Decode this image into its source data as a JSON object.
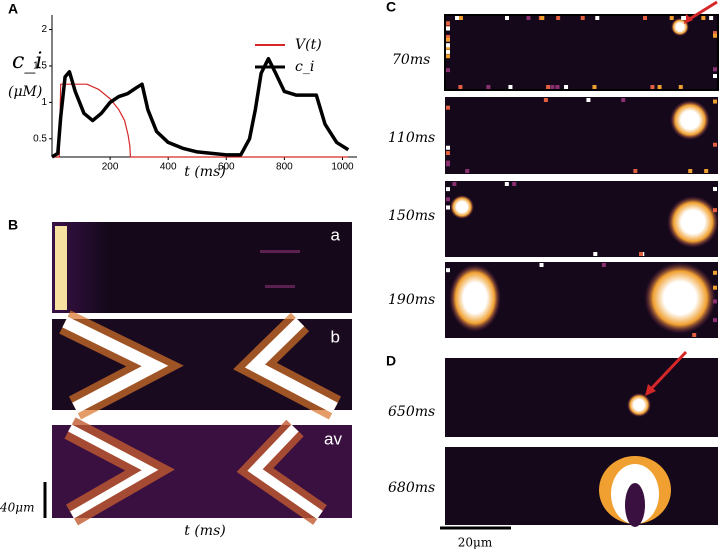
{
  "chart_data": {
    "type": "line",
    "panel": "A",
    "xlabel": "t  (ms)",
    "ylabel": "c_i",
    "ylabel_unit": "(μM)",
    "xlim": [
      0,
      1050
    ],
    "ylim": [
      0.25,
      2.2
    ],
    "xticks": [
      200,
      400,
      600,
      800,
      1000
    ],
    "yticks": [
      0.5,
      1,
      1.5,
      2
    ],
    "legend": "upper right",
    "series": [
      {
        "name": "V(t)",
        "color": "#d62728",
        "x": [
          0,
          25,
          30,
          120,
          160,
          200,
          230,
          250,
          262,
          268,
          270,
          1020
        ],
        "values": [
          0.25,
          0.25,
          1.25,
          1.25,
          1.18,
          1.05,
          0.9,
          0.75,
          0.55,
          0.4,
          0.25,
          0.25
        ]
      },
      {
        "name": "c_i",
        "color": "#000000",
        "x": [
          0,
          20,
          30,
          45,
          60,
          80,
          110,
          140,
          170,
          200,
          230,
          260,
          290,
          310,
          330,
          360,
          400,
          450,
          500,
          550,
          600,
          650,
          680,
          700,
          720,
          745,
          770,
          800,
          840,
          880,
          910,
          940,
          980,
          1020
        ],
        "values": [
          0.25,
          0.3,
          0.8,
          1.35,
          1.42,
          1.15,
          0.85,
          0.75,
          0.85,
          1.0,
          1.08,
          1.12,
          1.2,
          1.25,
          0.9,
          0.6,
          0.45,
          0.37,
          0.32,
          0.3,
          0.28,
          0.28,
          0.5,
          0.9,
          1.4,
          1.6,
          1.4,
          1.15,
          1.1,
          1.1,
          1.1,
          0.7,
          0.45,
          0.35
        ]
      }
    ]
  },
  "panels": {
    "B": {
      "label": "B",
      "rows": [
        "a",
        "b",
        "av"
      ],
      "scale": "40μm",
      "xlabel": "t   (ms)"
    },
    "C": {
      "label": "C",
      "times": [
        "70ms",
        "110ms",
        "150ms",
        "190ms"
      ]
    },
    "D": {
      "label": "D",
      "times": [
        "650ms",
        "680ms"
      ],
      "scale": "20μm"
    }
  }
}
